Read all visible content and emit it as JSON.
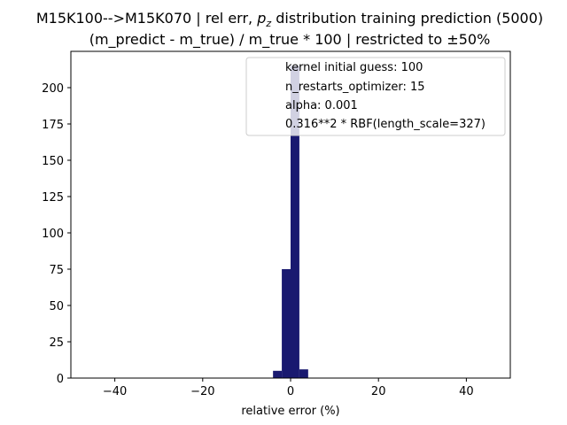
{
  "chart_data": {
    "type": "bar",
    "title_line1_a": "M15K100-->M15K070 | rel err, ",
    "title_line1_var": "p",
    "title_line1_sub": "z",
    "title_line1_b": " distribution training prediction (5000)",
    "title_line2": "(m_predict - m_true) / m_true * 100 | restricted to ±50%",
    "xlabel": "relative error (%)",
    "ylabel": "",
    "xlim": [
      -50,
      50
    ],
    "ylim": [
      0,
      225
    ],
    "x_ticks": [
      -40,
      -20,
      0,
      20,
      40
    ],
    "x_tick_labels": [
      "−40",
      "−20",
      "0",
      "20",
      "40"
    ],
    "y_ticks": [
      0,
      25,
      50,
      75,
      100,
      125,
      150,
      175,
      200
    ],
    "y_tick_labels": [
      "0",
      "25",
      "50",
      "75",
      "100",
      "125",
      "150",
      "175",
      "200"
    ],
    "bar_color": "#191970",
    "bins": [
      {
        "x0": -4,
        "x1": -2,
        "count": 5
      },
      {
        "x0": -2,
        "x1": 0,
        "count": 75
      },
      {
        "x0": 0,
        "x1": 2,
        "count": 215
      },
      {
        "x0": 2,
        "x1": 4,
        "count": 6
      }
    ],
    "legend": {
      "placement": "upper right",
      "lines": [
        "kernel initial guess: 100",
        "n_restarts_optimizer: 15",
        "alpha: 0.001",
        "0.316**2 * RBF(length_scale=327)"
      ]
    }
  }
}
